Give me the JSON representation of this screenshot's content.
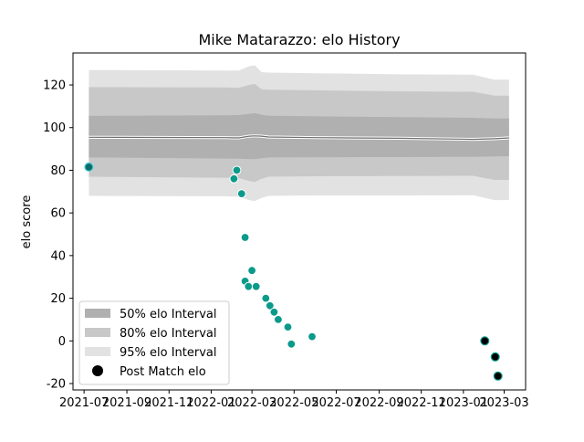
{
  "chart_data": {
    "type": "scatter",
    "title": "Mike Matarazzo: elo History",
    "xlabel": "",
    "ylabel": "elo score",
    "xlim": [
      "2021-06-15",
      "2023-04-01"
    ],
    "ylim": [
      -23,
      135
    ],
    "grid": false,
    "legend_position": "lower-left",
    "x_ticks": [
      {
        "date": "2021-07-01",
        "label": "2021-07"
      },
      {
        "date": "2021-09-01",
        "label": "2021-09"
      },
      {
        "date": "2021-11-01",
        "label": "2021-11"
      },
      {
        "date": "2022-01-01",
        "label": "2022-01"
      },
      {
        "date": "2022-03-01",
        "label": "2022-03"
      },
      {
        "date": "2022-05-01",
        "label": "2022-05"
      },
      {
        "date": "2022-07-01",
        "label": "2022-07"
      },
      {
        "date": "2022-09-01",
        "label": "2022-09"
      },
      {
        "date": "2022-11-01",
        "label": "2022-11"
      },
      {
        "date": "2023-01-01",
        "label": "2023-01"
      },
      {
        "date": "2023-03-01",
        "label": "2023-03"
      }
    ],
    "y_ticks": [
      -20,
      0,
      20,
      40,
      60,
      80,
      100,
      120
    ],
    "intervals": {
      "dates": [
        "2021-07-08",
        "2022-01-20",
        "2022-02-10",
        "2022-02-25",
        "2022-03-05",
        "2022-03-15",
        "2022-03-25",
        "2022-06-01",
        "2022-10-01",
        "2023-01-15",
        "2023-02-15",
        "2023-03-08"
      ],
      "median": [
        95.5,
        95.3,
        95.2,
        96.0,
        96.1,
        96.0,
        95.6,
        95.3,
        95.0,
        94.5,
        94.8,
        95.2
      ],
      "bands": [
        {
          "name": "50% elo Interval",
          "color": "#b0b0b0",
          "lower": [
            86.0,
            85.5,
            85.4,
            85.2,
            85.2,
            85.6,
            86.0,
            86.1,
            86.2,
            86.3,
            86.5,
            86.6
          ],
          "upper": [
            105.5,
            105.8,
            105.9,
            106.5,
            106.8,
            106.0,
            105.6,
            105.3,
            104.9,
            104.6,
            104.3,
            104.3
          ]
        },
        {
          "name": "80% elo Interval",
          "color": "#c8c8c8",
          "lower": [
            77.0,
            76.5,
            76.3,
            75.0,
            74.5,
            76.0,
            77.0,
            77.2,
            77.3,
            77.4,
            75.5,
            75.5
          ],
          "upper": [
            119.0,
            118.8,
            118.7,
            120.0,
            120.5,
            118.0,
            117.8,
            117.5,
            117.0,
            116.8,
            115.0,
            115.0
          ]
        },
        {
          "name": "95% elo Interval",
          "color": "#e2e2e2",
          "lower": [
            68.0,
            67.8,
            67.6,
            66.0,
            65.5,
            67.0,
            68.0,
            68.2,
            68.2,
            68.3,
            66.0,
            66.0
          ],
          "upper": [
            127.0,
            126.8,
            126.8,
            128.8,
            129.2,
            126.0,
            125.8,
            125.5,
            125.0,
            124.8,
            122.5,
            122.5
          ]
        }
      ]
    },
    "series": [
      {
        "color": "#0a9a8a",
        "points": [
          {
            "x": "2021-07-08",
            "y": 81.5
          },
          {
            "x": "2022-02-03",
            "y": 76.0
          },
          {
            "x": "2022-02-07",
            "y": 80.0
          },
          {
            "x": "2022-02-14",
            "y": 69.0
          },
          {
            "x": "2022-02-19",
            "y": 48.5
          },
          {
            "x": "2022-02-19",
            "y": 28.0
          },
          {
            "x": "2022-02-24",
            "y": 25.5
          },
          {
            "x": "2022-03-01",
            "y": 33.0
          },
          {
            "x": "2022-03-07",
            "y": 25.5
          },
          {
            "x": "2022-03-21",
            "y": 20.0
          },
          {
            "x": "2022-03-27",
            "y": 16.5
          },
          {
            "x": "2022-04-02",
            "y": 13.5
          },
          {
            "x": "2022-04-08",
            "y": 10.0
          },
          {
            "x": "2022-04-22",
            "y": 6.5
          },
          {
            "x": "2022-04-27",
            "y": -1.5
          },
          {
            "x": "2022-05-27",
            "y": 2.0
          }
        ]
      },
      {
        "color": "#000000",
        "points": [
          {
            "x": "2023-02-01",
            "y": 0.0
          },
          {
            "x": "2023-02-16",
            "y": -7.5
          },
          {
            "x": "2023-02-20",
            "y": -16.5
          }
        ]
      }
    ],
    "legend": [
      {
        "label": "50% elo Interval",
        "kind": "patch",
        "color": "#b0b0b0"
      },
      {
        "label": "80% elo Interval",
        "kind": "patch",
        "color": "#c8c8c8"
      },
      {
        "label": "95% elo Interval",
        "kind": "patch",
        "color": "#e2e2e2"
      },
      {
        "label": "Post Match elo",
        "kind": "marker",
        "color": "#000000"
      }
    ]
  }
}
